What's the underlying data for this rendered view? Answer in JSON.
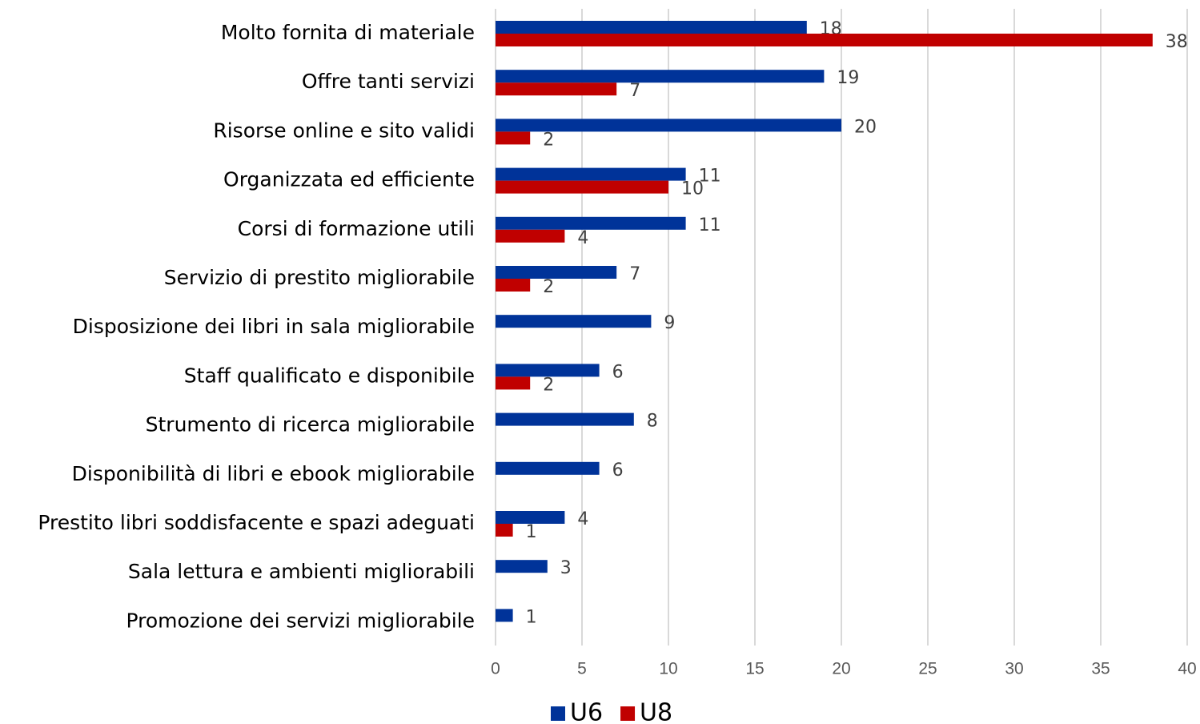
{
  "chart_data": {
    "type": "bar",
    "orientation": "horizontal",
    "categories": [
      "Molto fornita di materiale",
      "Offre tanti servizi",
      "Risorse online e sito validi",
      "Organizzata ed efficiente",
      "Corsi di formazione utili",
      "Servizio di prestito migliorabile",
      "Disposizione dei libri in sala migliorabile",
      "Staff qualificato e disponibile",
      "Strumento di ricerca migliorabile",
      "Disponibilità di libri e ebook migliorabile",
      "Prestito libri soddisfacente e spazi adeguati",
      "Sala lettura e ambienti migliorabili",
      "Promozione dei servizi migliorabile"
    ],
    "series": [
      {
        "name": "U6",
        "color": "#003399",
        "values": [
          18,
          19,
          20,
          11,
          11,
          7,
          9,
          6,
          8,
          6,
          4,
          3,
          1
        ]
      },
      {
        "name": "U8",
        "color": "#c00000",
        "values": [
          38,
          7,
          2,
          10,
          4,
          2,
          null,
          2,
          null,
          null,
          1,
          null,
          null
        ]
      }
    ],
    "xlim": [
      0,
      40
    ],
    "xticks": [
      0,
      5,
      10,
      15,
      20,
      25,
      30,
      35,
      40
    ],
    "grid": true,
    "legend": "bottom"
  }
}
